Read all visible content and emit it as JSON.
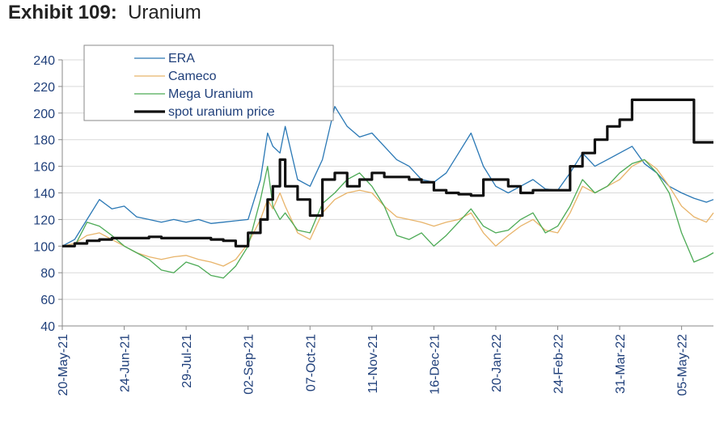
{
  "header": {
    "exhibit": "Exhibit 109:",
    "subject": "Uranium"
  },
  "chart_data": {
    "type": "line",
    "title": "Uranium",
    "ylim": [
      40,
      240
    ],
    "yticks": [
      40,
      60,
      80,
      100,
      120,
      140,
      160,
      180,
      200,
      220,
      240
    ],
    "xlim": [
      "2021-05-20",
      "2022-05-23"
    ],
    "xticks": [
      "2021-05-20",
      "2021-06-24",
      "2021-07-29",
      "2021-09-02",
      "2021-10-07",
      "2021-11-11",
      "2021-12-16",
      "2022-01-20",
      "2022-02-24",
      "2022-03-31",
      "2022-05-05"
    ],
    "xtick_labels": [
      "20-May-21",
      "24-Jun-21",
      "29-Jul-21",
      "02-Sep-21",
      "07-Oct-21",
      "11-Nov-21",
      "16-Dec-21",
      "20-Jan-22",
      "24-Feb-22",
      "31-Mar-22",
      "05-May-22"
    ],
    "grid": "horizontal",
    "legend_position": "top-left",
    "series": [
      {
        "name": "ERA",
        "color": "#2a78b5",
        "width": 1.3,
        "step": false,
        "x": [
          "2021-05-20",
          "2021-05-27",
          "2021-06-03",
          "2021-06-10",
          "2021-06-17",
          "2021-06-24",
          "2021-07-01",
          "2021-07-08",
          "2021-07-15",
          "2021-07-22",
          "2021-07-29",
          "2021-08-05",
          "2021-08-12",
          "2021-08-19",
          "2021-08-26",
          "2021-09-02",
          "2021-09-09",
          "2021-09-13",
          "2021-09-16",
          "2021-09-20",
          "2021-09-23",
          "2021-09-30",
          "2021-10-07",
          "2021-10-14",
          "2021-10-21",
          "2021-10-28",
          "2021-11-04",
          "2021-11-11",
          "2021-11-18",
          "2021-11-25",
          "2021-12-02",
          "2021-12-09",
          "2021-12-16",
          "2021-12-23",
          "2021-12-30",
          "2022-01-06",
          "2022-01-13",
          "2022-01-20",
          "2022-01-27",
          "2022-02-03",
          "2022-02-10",
          "2022-02-17",
          "2022-02-24",
          "2022-03-03",
          "2022-03-10",
          "2022-03-17",
          "2022-03-24",
          "2022-03-31",
          "2022-04-07",
          "2022-04-14",
          "2022-04-21",
          "2022-04-28",
          "2022-05-05",
          "2022-05-12",
          "2022-05-19",
          "2022-05-23"
        ],
        "y": [
          100,
          105,
          120,
          135,
          128,
          130,
          122,
          120,
          118,
          120,
          118,
          120,
          117,
          118,
          119,
          120,
          150,
          185,
          175,
          170,
          190,
          150,
          145,
          165,
          205,
          190,
          182,
          185,
          175,
          165,
          160,
          150,
          148,
          155,
          170,
          185,
          160,
          145,
          140,
          145,
          150,
          143,
          142,
          155,
          170,
          160,
          165,
          170,
          175,
          162,
          155,
          145,
          140,
          136,
          133,
          135
        ]
      },
      {
        "name": "Cameco",
        "color": "#e8b46a",
        "width": 1.3,
        "step": false,
        "x": [
          "2021-05-20",
          "2021-05-27",
          "2021-06-03",
          "2021-06-10",
          "2021-06-17",
          "2021-06-24",
          "2021-07-01",
          "2021-07-08",
          "2021-07-15",
          "2021-07-22",
          "2021-07-29",
          "2021-08-05",
          "2021-08-12",
          "2021-08-19",
          "2021-08-26",
          "2021-09-02",
          "2021-09-09",
          "2021-09-13",
          "2021-09-16",
          "2021-09-20",
          "2021-09-23",
          "2021-09-30",
          "2021-10-07",
          "2021-10-14",
          "2021-10-21",
          "2021-10-28",
          "2021-11-04",
          "2021-11-11",
          "2021-11-18",
          "2021-11-25",
          "2021-12-02",
          "2021-12-09",
          "2021-12-16",
          "2021-12-23",
          "2021-12-30",
          "2022-01-06",
          "2022-01-13",
          "2022-01-20",
          "2022-01-27",
          "2022-02-03",
          "2022-02-10",
          "2022-02-17",
          "2022-02-24",
          "2022-03-03",
          "2022-03-10",
          "2022-03-17",
          "2022-03-24",
          "2022-03-31",
          "2022-04-07",
          "2022-04-14",
          "2022-04-21",
          "2022-04-28",
          "2022-05-05",
          "2022-05-12",
          "2022-05-19",
          "2022-05-23"
        ],
        "y": [
          100,
          102,
          108,
          110,
          105,
          100,
          95,
          92,
          90,
          92,
          93,
          90,
          88,
          85,
          90,
          102,
          120,
          135,
          128,
          140,
          130,
          110,
          105,
          125,
          135,
          140,
          142,
          140,
          130,
          122,
          120,
          118,
          115,
          118,
          120,
          125,
          110,
          100,
          108,
          115,
          120,
          112,
          110,
          125,
          145,
          140,
          145,
          150,
          160,
          165,
          158,
          145,
          130,
          122,
          118,
          125
        ]
      },
      {
        "name": "Mega Uranium",
        "color": "#4caa55",
        "width": 1.3,
        "step": false,
        "x": [
          "2021-05-20",
          "2021-05-27",
          "2021-06-03",
          "2021-06-10",
          "2021-06-17",
          "2021-06-24",
          "2021-07-01",
          "2021-07-08",
          "2021-07-15",
          "2021-07-22",
          "2021-07-29",
          "2021-08-05",
          "2021-08-12",
          "2021-08-19",
          "2021-08-26",
          "2021-09-02",
          "2021-09-09",
          "2021-09-13",
          "2021-09-16",
          "2021-09-20",
          "2021-09-23",
          "2021-09-30",
          "2021-10-07",
          "2021-10-14",
          "2021-10-21",
          "2021-10-28",
          "2021-11-04",
          "2021-11-11",
          "2021-11-18",
          "2021-11-25",
          "2021-12-02",
          "2021-12-09",
          "2021-12-16",
          "2021-12-23",
          "2021-12-30",
          "2022-01-06",
          "2022-01-13",
          "2022-01-20",
          "2022-01-27",
          "2022-02-03",
          "2022-02-10",
          "2022-02-17",
          "2022-02-24",
          "2022-03-03",
          "2022-03-10",
          "2022-03-17",
          "2022-03-24",
          "2022-03-31",
          "2022-04-07",
          "2022-04-14",
          "2022-04-21",
          "2022-04-28",
          "2022-05-05",
          "2022-05-12",
          "2022-05-19",
          "2022-05-23"
        ],
        "y": [
          100,
          100,
          118,
          115,
          108,
          100,
          95,
          90,
          82,
          80,
          88,
          85,
          78,
          76,
          85,
          100,
          135,
          160,
          130,
          120,
          125,
          112,
          110,
          132,
          140,
          150,
          155,
          145,
          130,
          108,
          105,
          110,
          100,
          108,
          118,
          128,
          115,
          110,
          112,
          120,
          125,
          110,
          115,
          130,
          150,
          140,
          145,
          155,
          162,
          165,
          155,
          140,
          110,
          88,
          92,
          95
        ]
      },
      {
        "name": "spot uranium price",
        "color": "#111111",
        "width": 3.2,
        "step": true,
        "x": [
          "2021-05-20",
          "2021-05-27",
          "2021-06-03",
          "2021-06-10",
          "2021-06-17",
          "2021-06-24",
          "2021-07-01",
          "2021-07-08",
          "2021-07-15",
          "2021-07-22",
          "2021-07-29",
          "2021-08-05",
          "2021-08-12",
          "2021-08-19",
          "2021-08-26",
          "2021-09-02",
          "2021-09-09",
          "2021-09-13",
          "2021-09-16",
          "2021-09-20",
          "2021-09-23",
          "2021-09-30",
          "2021-10-07",
          "2021-10-14",
          "2021-10-21",
          "2021-10-28",
          "2021-11-04",
          "2021-11-11",
          "2021-11-18",
          "2021-11-25",
          "2021-12-02",
          "2021-12-09",
          "2021-12-16",
          "2021-12-23",
          "2021-12-30",
          "2022-01-06",
          "2022-01-13",
          "2022-01-20",
          "2022-01-27",
          "2022-02-03",
          "2022-02-10",
          "2022-02-17",
          "2022-02-24",
          "2022-03-03",
          "2022-03-10",
          "2022-03-17",
          "2022-03-24",
          "2022-03-31",
          "2022-04-07",
          "2022-04-14",
          "2022-04-21",
          "2022-04-28",
          "2022-05-05",
          "2022-05-12",
          "2022-05-19",
          "2022-05-23"
        ],
        "y": [
          100,
          102,
          104,
          105,
          106,
          106,
          106,
          107,
          106,
          106,
          106,
          106,
          105,
          104,
          100,
          110,
          120,
          135,
          145,
          165,
          145,
          135,
          123,
          150,
          155,
          145,
          150,
          155,
          152,
          152,
          150,
          148,
          142,
          140,
          139,
          138,
          150,
          150,
          145,
          140,
          142,
          142,
          142,
          160,
          170,
          180,
          190,
          195,
          210,
          210,
          210,
          210,
          210,
          178,
          178,
          178
        ]
      }
    ]
  }
}
